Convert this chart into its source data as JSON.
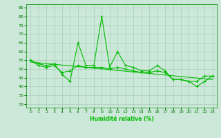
{
  "title": "",
  "xlabel": "Humidité relative (%)",
  "ylabel": "",
  "background_color": "#cce8d8",
  "grid_color": "#aaccbb",
  "line_color": "#00bb00",
  "xlim": [
    -0.5,
    23.5
  ],
  "ylim": [
    28,
    87
  ],
  "yticks": [
    30,
    35,
    40,
    45,
    50,
    55,
    60,
    65,
    70,
    75,
    80,
    85
  ],
  "xticks": [
    0,
    1,
    2,
    3,
    4,
    5,
    6,
    7,
    8,
    9,
    10,
    11,
    12,
    13,
    14,
    15,
    16,
    17,
    18,
    19,
    20,
    21,
    22,
    23
  ],
  "series1_x": [
    0,
    1,
    2,
    3,
    4,
    5,
    6,
    7,
    8,
    9,
    10,
    11,
    12,
    13,
    14,
    15,
    16,
    17,
    18,
    19,
    20,
    21,
    22,
    23
  ],
  "series1_y": [
    55,
    53,
    52,
    53,
    47,
    43,
    65,
    52,
    52,
    80,
    51,
    60,
    52,
    51,
    49,
    49,
    52,
    49,
    44,
    44,
    43,
    40,
    43,
    46
  ],
  "series2_x": [
    0,
    1,
    2,
    3,
    4,
    5,
    6,
    7,
    8,
    9,
    10,
    11,
    12,
    13,
    14,
    15,
    16,
    17,
    18,
    19,
    20,
    21,
    22,
    23
  ],
  "series2_y": [
    55,
    52,
    51,
    52,
    48,
    49,
    52,
    51,
    51,
    51,
    50,
    51,
    50,
    49,
    48,
    48,
    49,
    48,
    44,
    44,
    43,
    43,
    46,
    46
  ],
  "trend_x": [
    0,
    23
  ],
  "trend_y": [
    54.0,
    44.0
  ]
}
